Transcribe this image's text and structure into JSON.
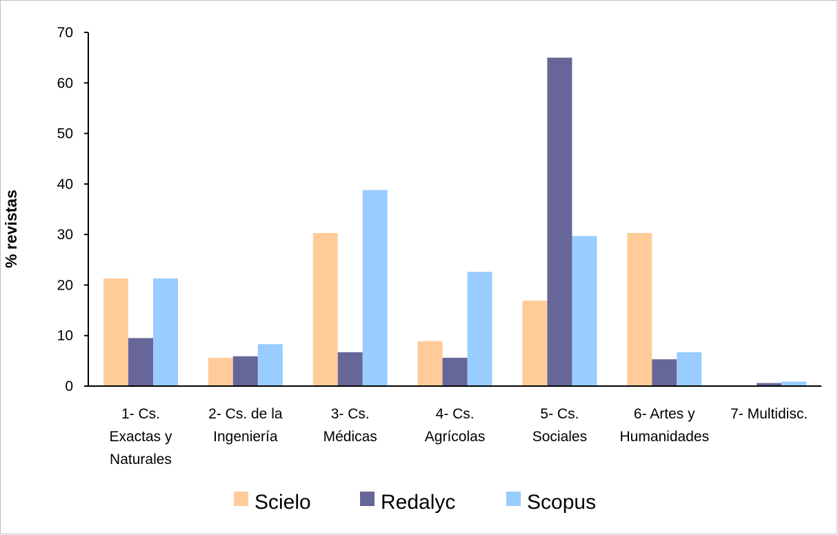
{
  "chart_data": {
    "type": "bar",
    "ylabel": "% revistas",
    "xlabel": "",
    "ylim": [
      0,
      70
    ],
    "yticks": [
      0,
      10,
      20,
      30,
      40,
      50,
      60,
      70
    ],
    "grid": false,
    "legend_position": "bottom",
    "categories": [
      [
        "1- Cs.",
        "Exactas y",
        "Naturales"
      ],
      [
        "2- Cs. de la",
        "Ingeniería"
      ],
      [
        "3- Cs.",
        "Médicas"
      ],
      [
        "4- Cs.",
        "Agrícolas"
      ],
      [
        "5- Cs.",
        "Sociales"
      ],
      [
        "6- Artes y",
        "Humanidades"
      ],
      [
        "7- Multidisc."
      ]
    ],
    "series": [
      {
        "name": "Scielo",
        "color": "#FFCC99",
        "values": [
          21.3,
          5.6,
          30.3,
          8.9,
          16.9,
          30.3,
          0
        ]
      },
      {
        "name": "Redalyc",
        "color": "#666699",
        "values": [
          9.5,
          5.9,
          6.7,
          5.6,
          65.0,
          5.3,
          0.6
        ]
      },
      {
        "name": "Scopus",
        "color": "#99CCFF",
        "values": [
          21.3,
          8.3,
          38.8,
          22.6,
          29.7,
          6.7,
          0.9
        ]
      }
    ]
  }
}
